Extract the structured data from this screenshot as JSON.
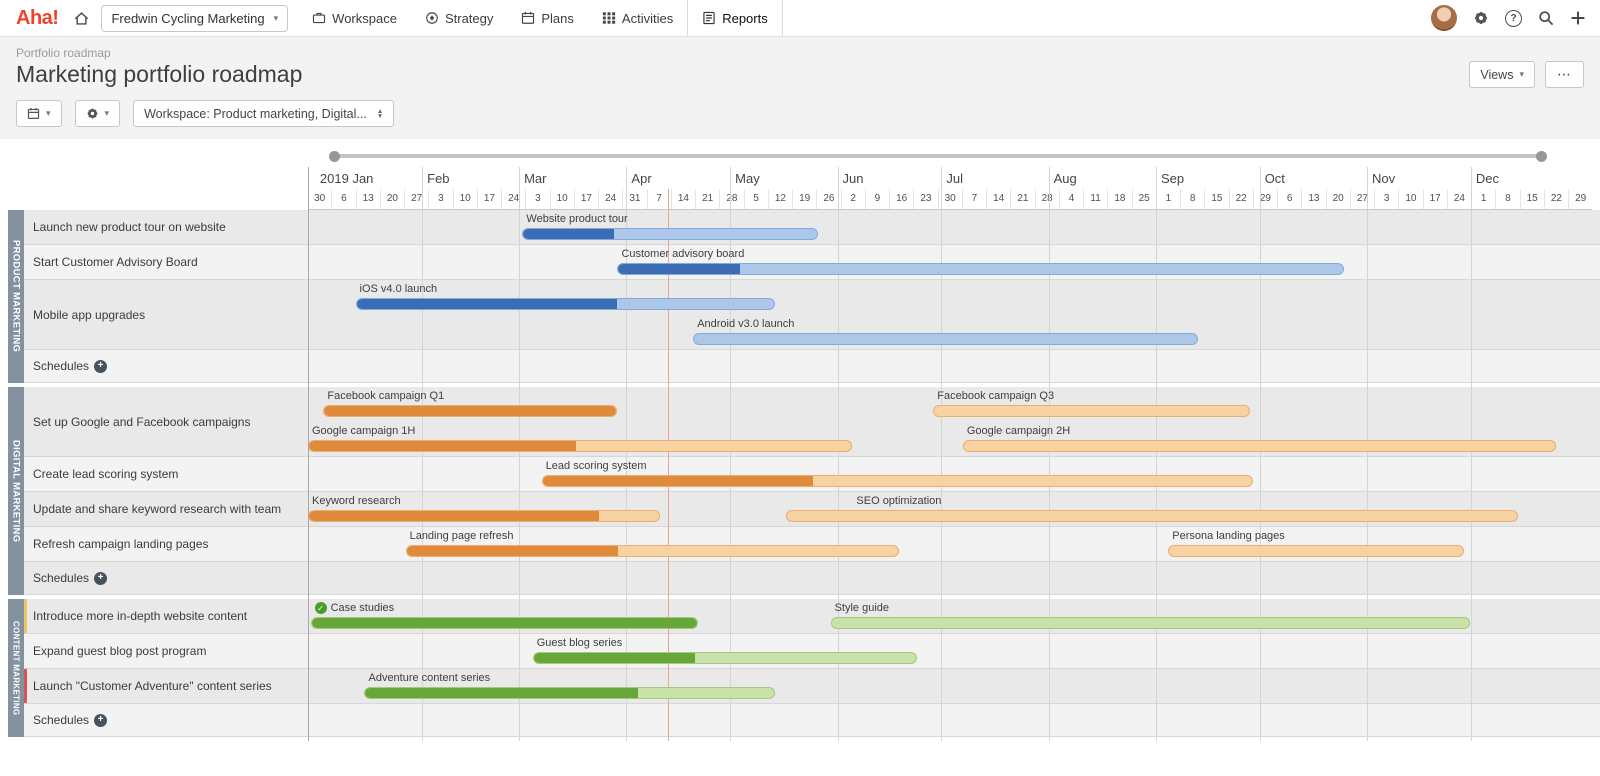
{
  "nav": {
    "logo": "Aha!",
    "workspace_selector": "Fredwin Cycling Marketing",
    "items": [
      {
        "id": "workspace",
        "label": "Workspace"
      },
      {
        "id": "strategy",
        "label": "Strategy"
      },
      {
        "id": "plans",
        "label": "Plans"
      },
      {
        "id": "activities",
        "label": "Activities"
      },
      {
        "id": "reports",
        "label": "Reports",
        "active": true
      }
    ]
  },
  "header": {
    "breadcrumb": "Portfolio roadmap",
    "title": "Marketing portfolio roadmap",
    "views_label": "Views",
    "more_label": "⋯"
  },
  "toolbar": {
    "workspace_filter": "Workspace: Product marketing, Digital..."
  },
  "colors": {
    "today_line": "#eda29b",
    "section_bar": "#84929f",
    "palettes": {
      "blue": {
        "dark": "#3a6db6",
        "light": "#abc8ea",
        "border": "#84abd8"
      },
      "orange": {
        "dark": "#e08a3c",
        "light": "#f7d3a2",
        "border": "#e9ae70"
      },
      "green": {
        "dark": "#67a73a",
        "light": "#c8e2a9",
        "border": "#a3ca79"
      }
    }
  },
  "chart_data": {
    "type": "gantt",
    "title": "Marketing portfolio roadmap",
    "today_pct": 28.0,
    "timeline": {
      "months": [
        {
          "label": "2019 Jan",
          "pct": 0.54
        },
        {
          "label": "Feb",
          "pct": 8.89
        },
        {
          "label": "Mar",
          "pct": 16.44
        },
        {
          "label": "Apr",
          "pct": 24.8
        },
        {
          "label": "May",
          "pct": 32.88
        },
        {
          "label": "Jun",
          "pct": 41.24
        },
        {
          "label": "Jul",
          "pct": 49.33
        },
        {
          "label": "Aug",
          "pct": 57.68
        },
        {
          "label": "Sep",
          "pct": 66.04
        },
        {
          "label": "Oct",
          "pct": 74.12
        },
        {
          "label": "Nov",
          "pct": 82.48
        },
        {
          "label": "Dec",
          "pct": 90.57
        }
      ],
      "weeks": [
        "30",
        "6",
        "13",
        "20",
        "27",
        "3",
        "10",
        "17",
        "24",
        "3",
        "10",
        "17",
        "24",
        "31",
        "7",
        "14",
        "21",
        "28",
        "5",
        "12",
        "19",
        "26",
        "2",
        "9",
        "16",
        "23",
        "30",
        "7",
        "14",
        "21",
        "28",
        "4",
        "11",
        "18",
        "25",
        "1",
        "8",
        "15",
        "22",
        "29",
        "6",
        "13",
        "20",
        "27",
        "3",
        "10",
        "17",
        "24",
        "1",
        "8",
        "15",
        "22",
        "29"
      ]
    },
    "sections": [
      {
        "name": "PRODUCT MARKETING",
        "color": "#84929f",
        "palette": "blue",
        "rows": [
          {
            "label": "Launch new product tour on website",
            "lanes": [
              [
                {
                  "label": "Website product tour",
                  "start": 16.7,
                  "progress": 23.8,
                  "end": 39.7
                }
              ]
            ]
          },
          {
            "label": "Start Customer Advisory Board",
            "lanes": [
              [
                {
                  "label": "Customer advisory board",
                  "start": 24.1,
                  "progress": 33.6,
                  "end": 80.7
                }
              ]
            ]
          },
          {
            "label": "Mobile app upgrades",
            "lanes": [
              [
                {
                  "label": "iOS v4.0 launch",
                  "start": 3.7,
                  "progress": 24.1,
                  "end": 36.4
                }
              ],
              [
                {
                  "label": "Android v3.0 launch",
                  "start": 30.0,
                  "progress": 30.0,
                  "end": 69.3
                }
              ]
            ]
          },
          {
            "label": "Schedules",
            "schedules": true
          }
        ]
      },
      {
        "name": "DIGITAL MARKETING",
        "color": "#84929f",
        "palette": "orange",
        "rows": [
          {
            "label": "Set up Google and Facebook campaigns",
            "lanes": [
              [
                {
                  "label": "Facebook campaign Q1",
                  "start": 1.2,
                  "progress": 24.1,
                  "end": 24.1
                },
                {
                  "label": "Facebook campaign Q3",
                  "start": 48.7,
                  "progress": 48.7,
                  "end": 73.4
                }
              ],
              [
                {
                  "label": "Google campaign 1H",
                  "start": 0,
                  "progress": 20.9,
                  "end": 42.4
                },
                {
                  "label": "Google campaign 2H",
                  "start": 51.0,
                  "progress": 51.0,
                  "end": 97.2
                }
              ]
            ]
          },
          {
            "label": "Create lead scoring system",
            "lanes": [
              [
                {
                  "label": "Lead scoring system",
                  "start": 18.2,
                  "progress": 39.3,
                  "end": 73.6
                }
              ]
            ]
          },
          {
            "label": "Update and share keyword research with team",
            "lanes": [
              [
                {
                  "label": "Keyword research",
                  "start": 0,
                  "progress": 22.7,
                  "end": 27.4
                },
                {
                  "label": "SEO optimization",
                  "start": 37.2,
                  "progress": 37.2,
                  "end": 94.2,
                  "label_at": 42.4
                }
              ]
            ]
          },
          {
            "label": "Refresh campaign landing pages",
            "lanes": [
              [
                {
                  "label": "Landing page refresh",
                  "start": 7.6,
                  "progress": 24.1,
                  "end": 46.0
                },
                {
                  "label": "Persona landing pages",
                  "start": 67.0,
                  "progress": 67.0,
                  "end": 90.0
                }
              ]
            ]
          },
          {
            "label": "Schedules",
            "schedules": true
          }
        ]
      },
      {
        "name": "CONTENT MARKETING",
        "color": "#84929f",
        "palette": "green",
        "rows": [
          {
            "label": "Introduce more in-depth website content",
            "accent": "#e8c767",
            "lanes": [
              [
                {
                  "label": "Case studies",
                  "start": 0.2,
                  "progress": 30.4,
                  "end": 30.4,
                  "check": true
                },
                {
                  "label": "Style guide",
                  "start": 40.7,
                  "progress": 40.7,
                  "end": 90.5
                }
              ]
            ]
          },
          {
            "label": "Expand guest blog post program",
            "lanes": [
              [
                {
                  "label": "Guest blog series",
                  "start": 17.5,
                  "progress": 30.1,
                  "end": 47.4
                }
              ]
            ]
          },
          {
            "label": "Launch \"Customer Adventure\" content series",
            "accent": "#d9534f",
            "lanes": [
              [
                {
                  "label": "Adventure content series",
                  "start": 4.4,
                  "progress": 25.7,
                  "end": 36.4
                }
              ]
            ]
          },
          {
            "label": "Schedules",
            "schedules": true
          }
        ]
      }
    ]
  }
}
